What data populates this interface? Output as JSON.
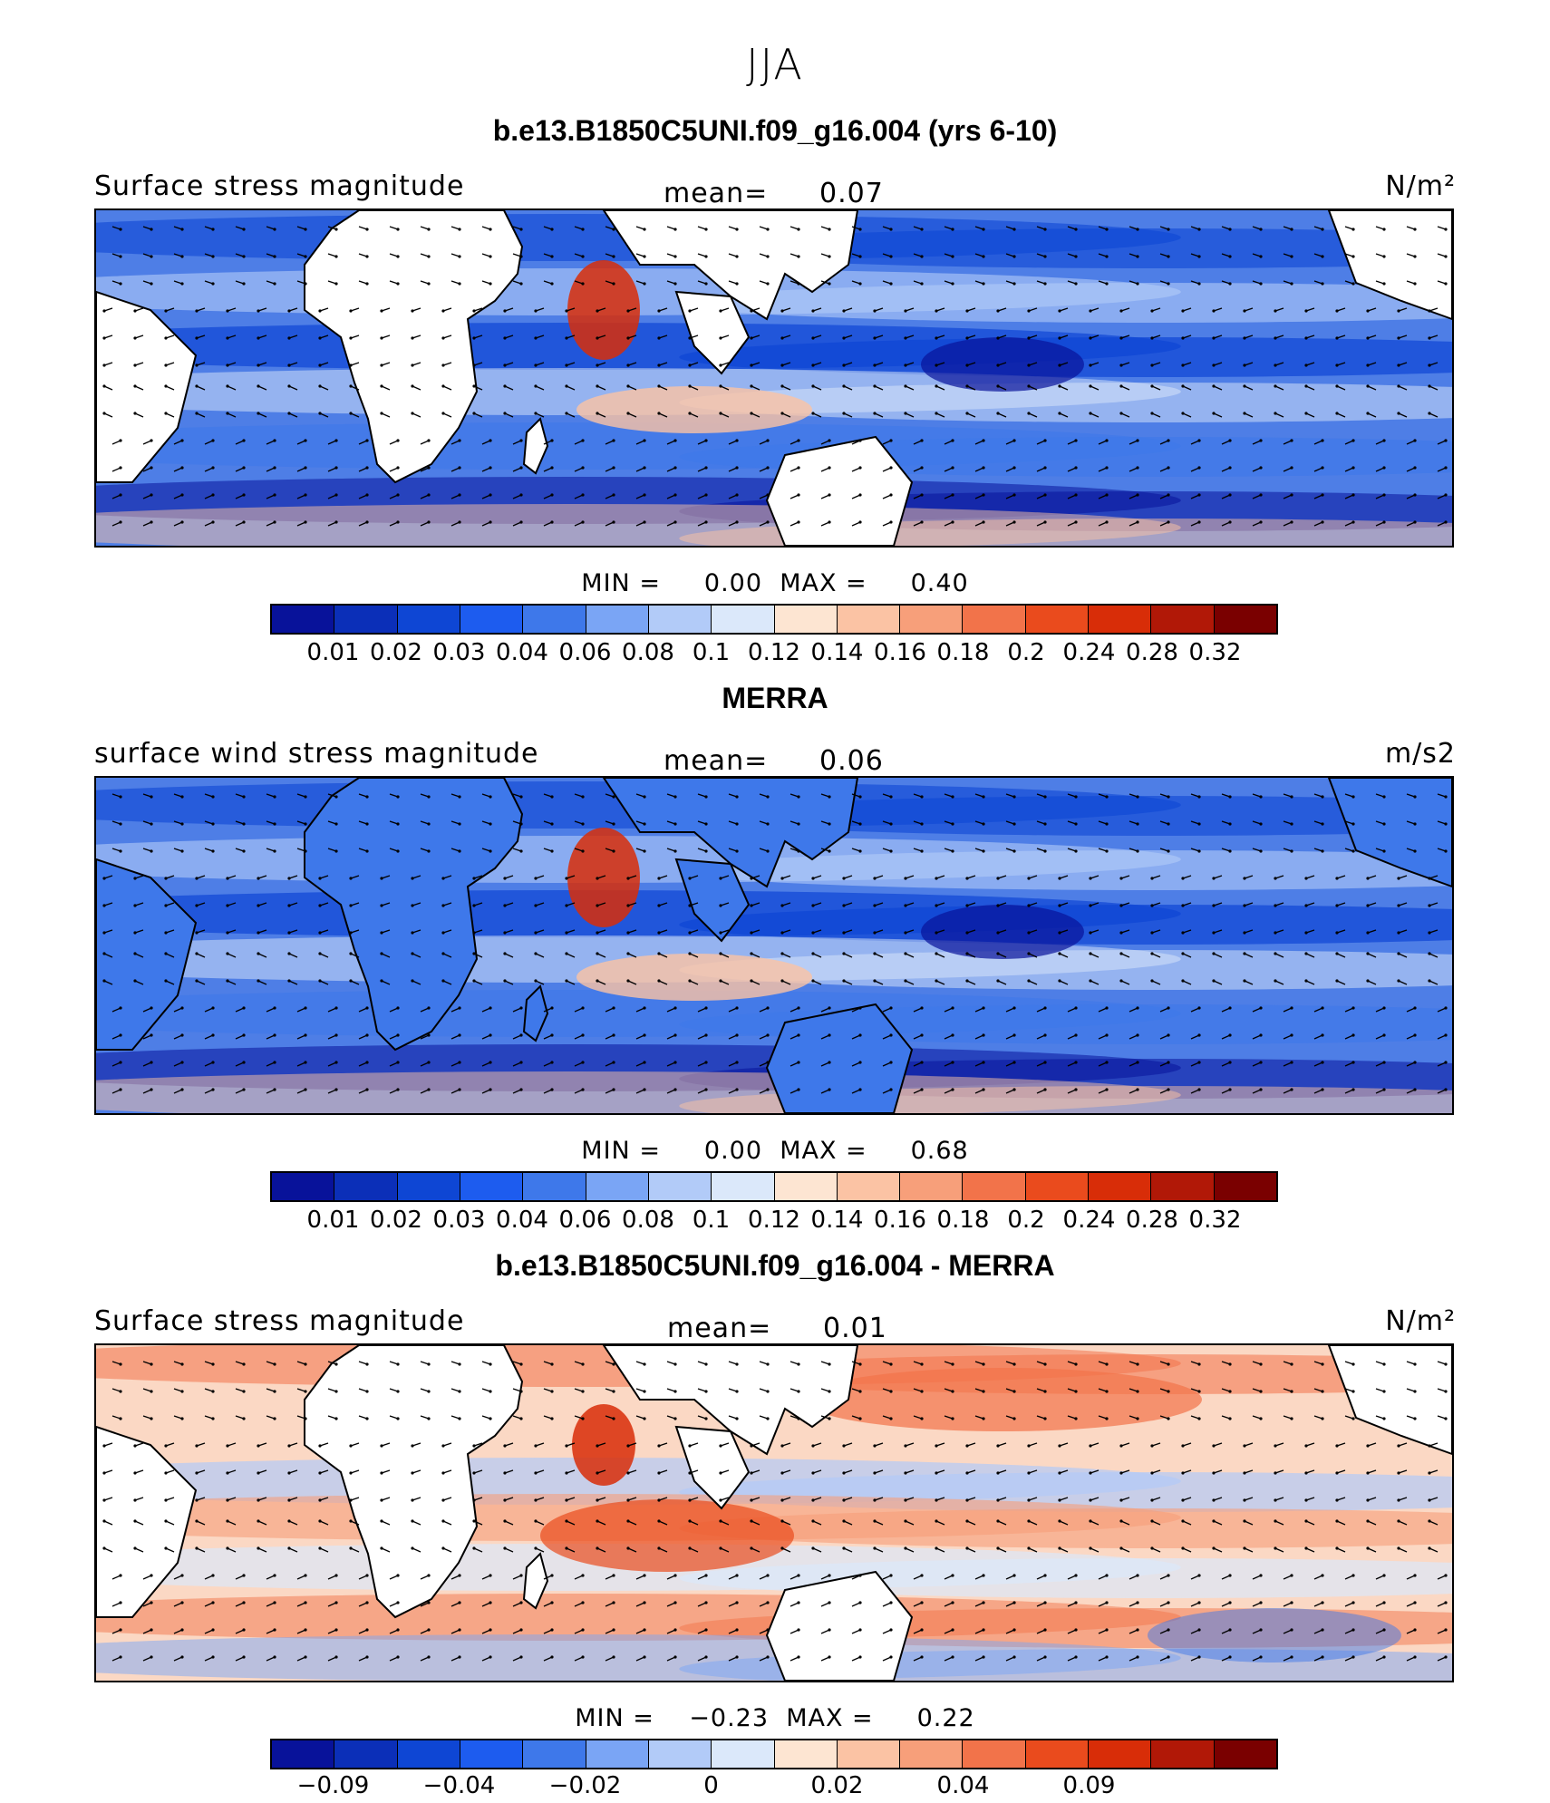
{
  "page_title": "JJA",
  "panels": [
    {
      "title": "b.e13.B1850C5UNI.f09_g16.004 (yrs 6-10)",
      "variable": "Surface stress magnitude",
      "mean_label": "mean=",
      "mean_value": "0.07",
      "units": "N/m²",
      "min_label": "MIN =",
      "min_value": "0.00",
      "max_label": "MAX =",
      "max_value": "0.40",
      "colorbar_labels": [
        "0.01",
        "0.02",
        "0.03",
        "0.04",
        "0.06",
        "0.08",
        "0.1",
        "0.12",
        "0.14",
        "0.16",
        "0.18",
        "0.2",
        "0.24",
        "0.28",
        "0.32"
      ],
      "colorbar_colors": [
        "#08129a",
        "#0b2fb8",
        "#0e46d4",
        "#1d5cef",
        "#3e78ea",
        "#7aa5f5",
        "#b2cbf8",
        "#dbe8fa",
        "#fde5d2",
        "#fbc3a4",
        "#f79f7a",
        "#f2734a",
        "#ea4b1d",
        "#d82d08",
        "#b11807",
        "#7a0000"
      ]
    },
    {
      "title": "MERRA",
      "variable": "surface wind stress magnitude",
      "mean_label": "mean=",
      "mean_value": "0.06",
      "units": "m/s2",
      "min_label": "MIN =",
      "min_value": "0.00",
      "max_label": "MAX =",
      "max_value": "0.68",
      "colorbar_labels": [
        "0.01",
        "0.02",
        "0.03",
        "0.04",
        "0.06",
        "0.08",
        "0.1",
        "0.12",
        "0.14",
        "0.16",
        "0.18",
        "0.2",
        "0.24",
        "0.28",
        "0.32"
      ],
      "colorbar_colors": [
        "#08129a",
        "#0b2fb8",
        "#0e46d4",
        "#1d5cef",
        "#3e78ea",
        "#7aa5f5",
        "#b2cbf8",
        "#dbe8fa",
        "#fde5d2",
        "#fbc3a4",
        "#f79f7a",
        "#f2734a",
        "#ea4b1d",
        "#d82d08",
        "#b11807",
        "#7a0000"
      ]
    },
    {
      "title": "b.e13.B1850C5UNI.f09_g16.004 - MERRA",
      "variable": "Surface stress magnitude",
      "mean_label": "mean=",
      "mean_value": "0.01",
      "units": "N/m²",
      "min_label": "MIN =",
      "min_value": "−0.23",
      "max_label": "MAX =",
      "max_value": "0.22",
      "colorbar_labels": [
        "−0.09",
        "−0.04",
        "−0.02",
        "0",
        "0.02",
        "0.04",
        "0.09"
      ],
      "colorbar_colors": [
        "#08129a",
        "#0b2fb8",
        "#0e46d4",
        "#1d5cef",
        "#3e78ea",
        "#7aa5f5",
        "#b2cbf8",
        "#dbe8fa",
        "#fde5d2",
        "#fbc3a4",
        "#f79f7a",
        "#f2734a",
        "#ea4b1d",
        "#d82d08",
        "#b11807",
        "#7a0000"
      ]
    }
  ],
  "chart_data": [
    {
      "type": "heatmap",
      "title": "b.e13.B1850C5UNI.f09_g16.004 (yrs 6-10)",
      "field": "Surface stress magnitude",
      "units": "N/m²",
      "season": "JJA",
      "mean": 0.07,
      "min": 0.0,
      "max": 0.4,
      "contour_levels": [
        0.01,
        0.02,
        0.03,
        0.04,
        0.06,
        0.08,
        0.1,
        0.12,
        0.14,
        0.16,
        0.18,
        0.2,
        0.24,
        0.28,
        0.32
      ],
      "land_masked": true,
      "overlay": "wind stress vectors"
    },
    {
      "type": "heatmap",
      "title": "MERRA",
      "field": "surface wind stress magnitude",
      "units": "m/s2",
      "season": "JJA",
      "mean": 0.06,
      "min": 0.0,
      "max": 0.68,
      "contour_levels": [
        0.01,
        0.02,
        0.03,
        0.04,
        0.06,
        0.08,
        0.1,
        0.12,
        0.14,
        0.16,
        0.18,
        0.2,
        0.24,
        0.28,
        0.32
      ],
      "land_masked": false,
      "overlay": "wind stress vectors"
    },
    {
      "type": "heatmap",
      "title": "b.e13.B1850C5UNI.f09_g16.004 - MERRA",
      "field": "Surface stress magnitude",
      "units": "N/m²",
      "season": "JJA",
      "mean": 0.01,
      "min": -0.23,
      "max": 0.22,
      "contour_levels": [
        -0.09,
        -0.04,
        -0.02,
        0,
        0.02,
        0.04,
        0.09
      ],
      "land_masked": true,
      "overlay": "wind stress difference vectors"
    }
  ]
}
